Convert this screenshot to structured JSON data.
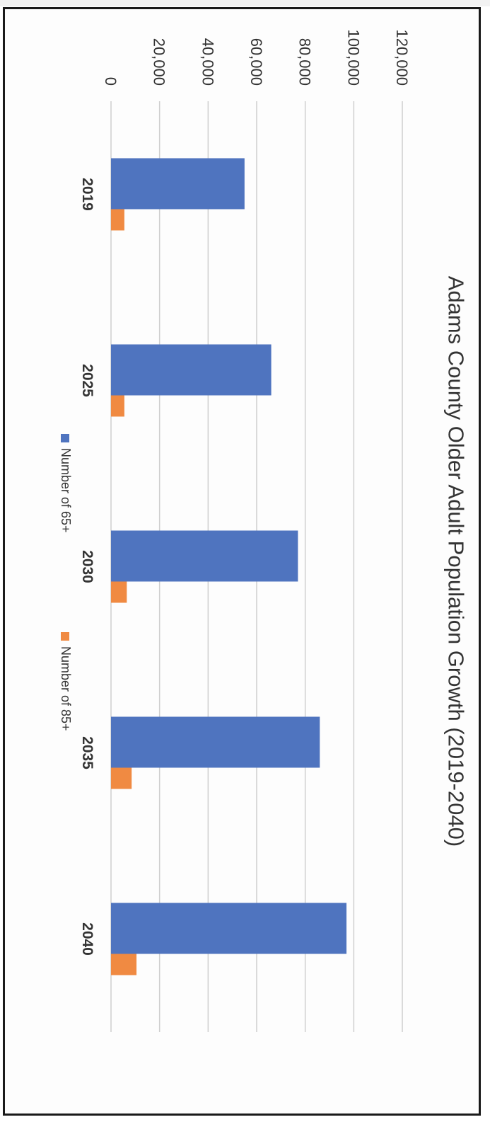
{
  "chart_data": {
    "type": "bar",
    "title": "Adams County Older Adult Population Growth (2019-2040)",
    "categories": [
      "2019",
      "2025",
      "2030",
      "2035",
      "2040"
    ],
    "series": [
      {
        "name": "Number of 65+",
        "values": [
          55000,
          66000,
          77000,
          86000,
          97000
        ],
        "color": "#4f74bf"
      },
      {
        "name": "Number of 85+",
        "values": [
          5500,
          5500,
          6500,
          8500,
          10500
        ],
        "color": "#f08a42"
      }
    ],
    "ylim": [
      0,
      120000
    ],
    "yticks": [
      "0",
      "20,000",
      "40,000",
      "60,000",
      "80,000",
      "100,000",
      "120,000"
    ],
    "xlabel": "",
    "ylabel": "",
    "grid": true,
    "legend_position": "bottom"
  }
}
